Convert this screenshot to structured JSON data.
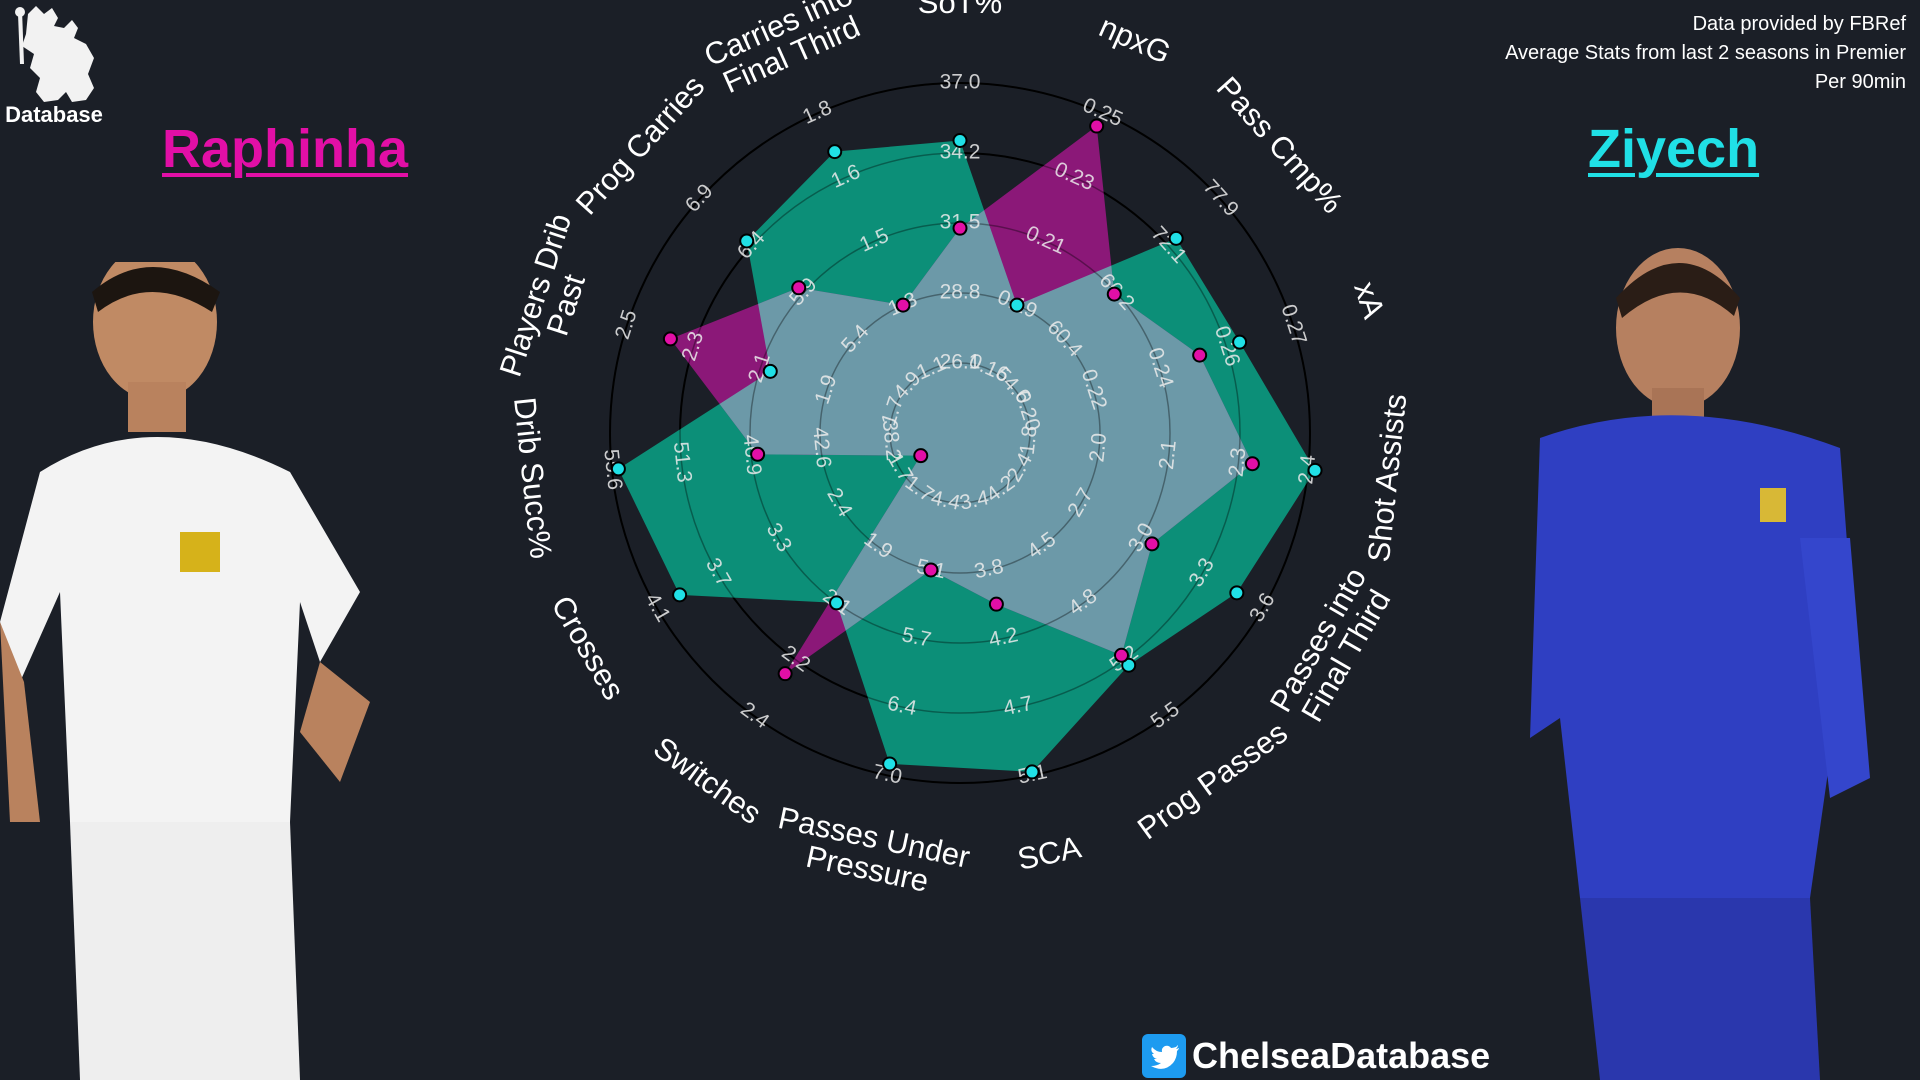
{
  "header": {
    "logo_text": "Database",
    "player_left": "Raphinha",
    "player_right": "Ziyech",
    "source_lines": [
      "Data provided by FBRef",
      "Average Stats from last 2 seasons in Premier",
      "Per 90min"
    ]
  },
  "footer": {
    "handle": "ChelseaDatabase",
    "icon": "twitter-bird-icon"
  },
  "colors": {
    "background": "#1b1f27",
    "raphinha": "#e20fa6",
    "ziyech": "#20e0e6",
    "ziyech_fill": "#0c8f78",
    "raphinha_fill": "#8b1878",
    "overlap_fill": "#6c99a8"
  },
  "chart_data": {
    "type": "radar",
    "title": "",
    "grid": true,
    "categories": [
      "SoT%",
      "npxG",
      "Pass Cmp%",
      "xA",
      "Shot Assists",
      "Passes into\nFinal Third",
      "Prog Passes",
      "SCA",
      "Passes Under\nPressure",
      "Switches",
      "Crosses",
      "Drib Succ%",
      "Players Drib\nPast",
      "Prog Carries",
      "Carries into\nFinal Third"
    ],
    "ring_labels": [
      [
        "26.1",
        "28.8",
        "31.5",
        "34.2",
        "37.0"
      ],
      [
        "0.16",
        "0.19",
        "0.21",
        "0.23",
        "0.25"
      ],
      [
        "54.6",
        "60.4",
        "66.2",
        "72.1",
        "77.9"
      ],
      [
        "0.20",
        "0.22",
        "0.24",
        "0.26",
        "0.27"
      ],
      [
        "1.8",
        "2.0",
        "2.1",
        "2.3",
        "2.4"
      ],
      [
        "2.4",
        "2.7",
        "3.0",
        "3.3",
        "3.6"
      ],
      [
        "4.2",
        "4.5",
        "4.8",
        "5.2",
        "5.5"
      ],
      [
        "3.4",
        "3.8",
        "4.2",
        "4.7",
        "5.1"
      ],
      [
        "4.4",
        "5.1",
        "5.7",
        "6.4",
        "7.0"
      ],
      [
        "1.7",
        "1.9",
        "2.1",
        "2.2",
        "2.4"
      ],
      [
        "1.7",
        "2.4",
        "3.3",
        "3.7",
        "4.1"
      ],
      [
        "38.2",
        "42.6",
        "46.9",
        "51.3",
        "55.6"
      ],
      [
        "1.7",
        "1.9",
        "2.1",
        "2.3",
        "2.5"
      ],
      [
        "4.9",
        "5.4",
        "5.9",
        "6.4",
        "6.9"
      ],
      [
        "1.1",
        "1.3",
        "1.5",
        "1.6",
        "1.8"
      ]
    ],
    "series": [
      {
        "name": "Raphinha",
        "values": [
          31.3,
          0.246,
          66.0,
          0.252,
          2.32,
          3.05,
          5.17,
          4.0,
          5.1,
          2.25,
          1.1,
          46.5,
          2.37,
          5.95,
          1.3
        ]
      },
      {
        "name": "Ziyech",
        "values": [
          34.7,
          0.19,
          73.0,
          0.262,
          2.41,
          3.47,
          5.23,
          5.08,
          6.9,
          2.1,
          3.95,
          55.2,
          2.07,
          6.45,
          1.68
        ]
      }
    ]
  }
}
